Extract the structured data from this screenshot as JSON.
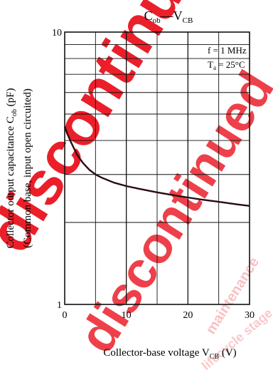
{
  "chart_data": {
    "type": "line",
    "title": {
      "main": "C",
      "main_sub": "ob",
      "sep": "—V",
      "var_sub": "CB"
    },
    "xlabel": {
      "text": "Collector-base voltage  V",
      "sub": "CB",
      "unit": "(V)"
    },
    "ylabel": {
      "line1": "Collector output capacitance  C",
      "line1_sub": "ob",
      "line1_unit": "(pF)",
      "line2": "(Common base, input open circuited)"
    },
    "xlim": [
      0,
      30
    ],
    "ylim": [
      1,
      10
    ],
    "yscale": "log",
    "x_ticks": [
      "0",
      "10",
      "20",
      "30"
    ],
    "y_ticks": [
      "1",
      "10"
    ],
    "grid": true,
    "annotations": {
      "freq": "f = 1 MHz",
      "temp_prefix": "T",
      "temp_sub": "a",
      "temp_suffix": " = 25°C"
    },
    "series": [
      {
        "x": [
          0,
          0.5,
          1,
          2,
          3,
          4,
          5,
          6,
          8,
          10,
          12,
          15,
          18,
          20,
          22,
          25,
          28,
          30
        ],
        "y": [
          4.5,
          4.2,
          3.95,
          3.55,
          3.3,
          3.12,
          3.0,
          2.92,
          2.8,
          2.72,
          2.66,
          2.58,
          2.51,
          2.47,
          2.43,
          2.38,
          2.33,
          2.3
        ]
      }
    ]
  },
  "watermark": {
    "color": "#e8000d",
    "words": [
      "discontinued",
      "maintenance",
      "lifecycle stage"
    ]
  }
}
